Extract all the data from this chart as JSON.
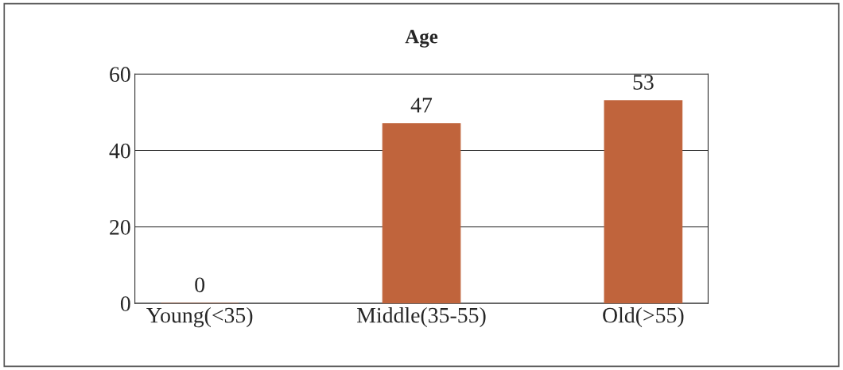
{
  "chart_data": {
    "type": "bar",
    "title": "Age",
    "categories": [
      "Young(<35)",
      "Middle(35-55)",
      "Old(>55)"
    ],
    "values": [
      0,
      47,
      53
    ],
    "color": "#c0643c",
    "ylim": [
      0,
      60
    ],
    "yticks": [
      0,
      20,
      40,
      60
    ],
    "grid": "y",
    "data_labels": true
  }
}
